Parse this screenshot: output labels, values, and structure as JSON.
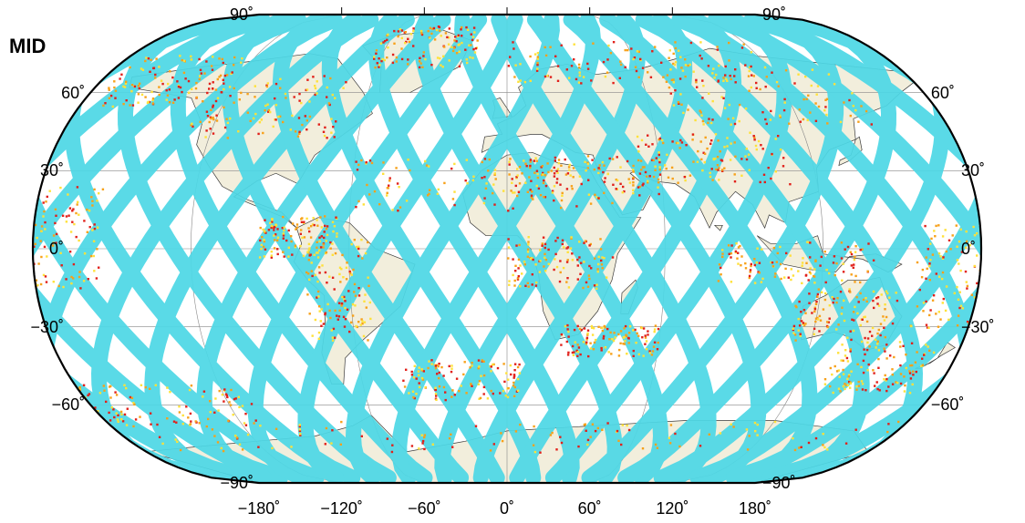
{
  "title": "MID",
  "map": {
    "projection": "winkel-tripel-like",
    "colors": {
      "land": "#f2eedc",
      "ocean": "#ffffff",
      "swath": "#4ed8e6",
      "swath_dark": "#2fbfd6",
      "high": "#e1201a",
      "mid": "#f7a11a",
      "low": "#ffe13a",
      "grid": "#888888",
      "border": "#000000"
    }
  },
  "axes": {
    "lat_left": [
      {
        "value": 90,
        "label": "90˚"
      },
      {
        "value": 60,
        "label": "60˚"
      },
      {
        "value": 30,
        "label": "30˚"
      },
      {
        "value": 0,
        "label": "0˚"
      },
      {
        "value": -30,
        "label": "−30˚"
      },
      {
        "value": -60,
        "label": "−60˚"
      },
      {
        "value": -90,
        "label": "−90˚"
      }
    ],
    "lat_right": [
      {
        "value": 90,
        "label": "90˚"
      },
      {
        "value": 60,
        "label": "60˚"
      },
      {
        "value": 30,
        "label": "30˚"
      },
      {
        "value": 0,
        "label": "0˚"
      },
      {
        "value": -30,
        "label": "−30˚"
      },
      {
        "value": -60,
        "label": "−60˚"
      },
      {
        "value": -90,
        "label": "−90˚"
      }
    ],
    "lon_bottom": [
      {
        "value": -180,
        "label": "−180˚"
      },
      {
        "value": -120,
        "label": "−120˚"
      },
      {
        "value": -60,
        "label": "−60˚"
      },
      {
        "value": 0,
        "label": "0˚"
      },
      {
        "value": 60,
        "label": "60˚"
      },
      {
        "value": 120,
        "label": "120˚"
      },
      {
        "value": 180,
        "label": "180˚"
      }
    ]
  }
}
